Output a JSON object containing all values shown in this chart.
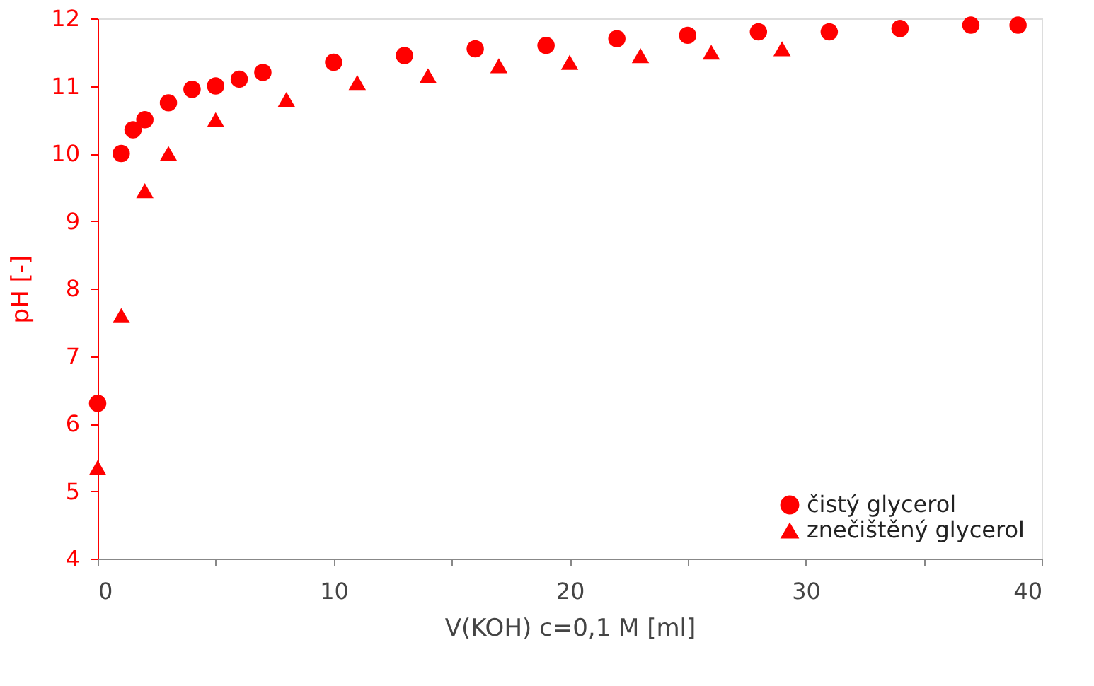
{
  "chart_data": {
    "type": "scatter",
    "xlabel": "V(KOH) c=0,1 M [ml]",
    "ylabel": "pH [-]",
    "xlim": [
      0,
      40
    ],
    "ylim": [
      4,
      12
    ],
    "xticks": [
      0,
      {
        "value": 5,
        "label": null
      },
      10,
      {
        "value": 15,
        "label": null
      },
      20,
      {
        "value": 25,
        "label": null
      },
      30,
      {
        "value": 35,
        "label": null
      },
      40
    ],
    "yticks": [
      4,
      5,
      6,
      7,
      8,
      9,
      10,
      11,
      12
    ],
    "grid": false,
    "legend": "bottom right",
    "series": [
      {
        "name": "čistý glycerol",
        "color": "#ff0000",
        "marker": "circle",
        "x": [
          0,
          1,
          1.5,
          2,
          3,
          4,
          5,
          6,
          7,
          10,
          13,
          16,
          19,
          22,
          25,
          28,
          31,
          34,
          37,
          39
        ],
        "values": [
          6.3,
          10.0,
          10.35,
          10.5,
          10.75,
          10.95,
          11.0,
          11.1,
          11.2,
          11.35,
          11.45,
          11.55,
          11.6,
          11.7,
          11.75,
          11.8,
          11.8,
          11.85,
          11.9,
          11.9
        ]
      },
      {
        "name": "znečištěný glycerol",
        "color": "#ff0000",
        "marker": "triangle",
        "x": [
          0,
          1,
          2,
          3,
          5,
          8,
          11,
          14,
          17,
          20,
          23,
          26,
          29
        ],
        "values": [
          5.35,
          7.6,
          9.45,
          10.0,
          10.5,
          10.8,
          11.05,
          11.15,
          11.3,
          11.35,
          11.45,
          11.5,
          11.55
        ]
      }
    ]
  }
}
